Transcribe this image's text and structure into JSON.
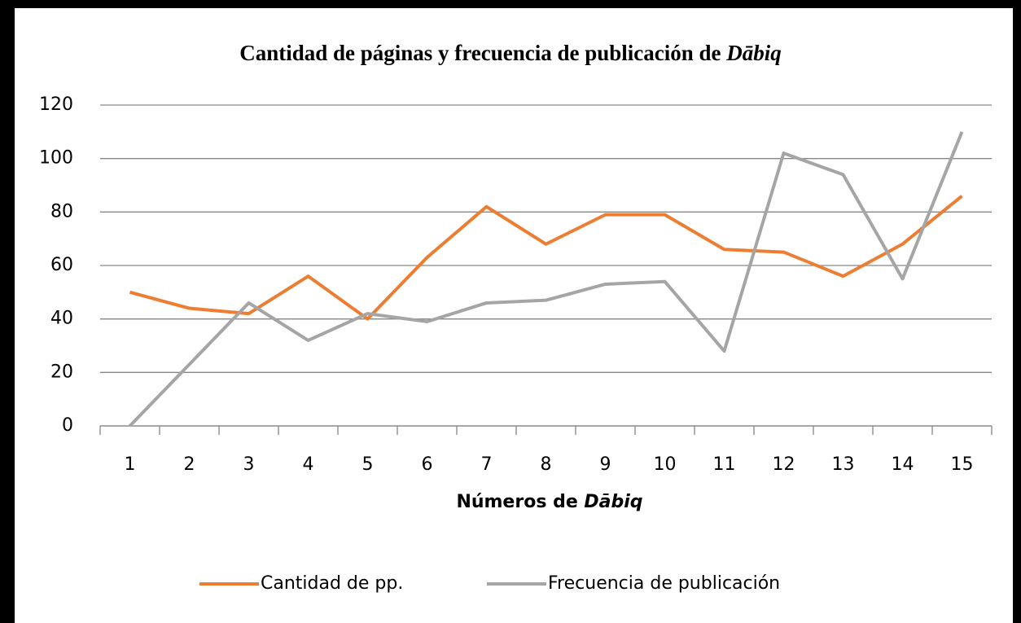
{
  "chart_data": {
    "type": "line",
    "title": "Cantidad de páginas y frecuencia de publicación de Dābiq",
    "x_label": "Números de Dābiq",
    "categories": [
      1,
      2,
      3,
      4,
      5,
      6,
      7,
      8,
      9,
      10,
      11,
      12,
      13,
      14,
      15
    ],
    "series": [
      {
        "name": "Cantidad de pp.",
        "color": "#ed7d31",
        "values": [
          50,
          44,
          42,
          56,
          40,
          63,
          82,
          68,
          79,
          79,
          66,
          65,
          56,
          68,
          86
        ]
      },
      {
        "name": "Frecuencia de publicación",
        "color": "#a5a5a5",
        "values": [
          0,
          23,
          46,
          32,
          42,
          39,
          46,
          47,
          53,
          54,
          28,
          102,
          94,
          55,
          110
        ]
      }
    ],
    "ylim": [
      0,
      120
    ],
    "yticks": [
      0,
      20,
      40,
      60,
      80,
      100,
      120
    ],
    "grid": true,
    "legend": "bottom"
  }
}
